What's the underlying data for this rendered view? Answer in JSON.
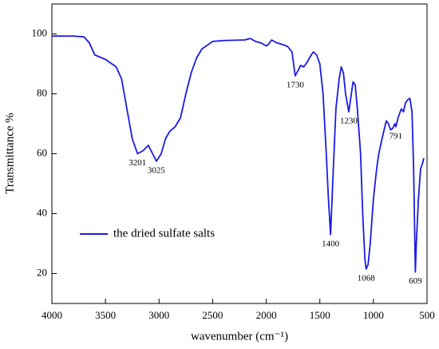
{
  "chart_data": {
    "type": "line",
    "x_label": "wavenumber (cm⁻¹)",
    "y_label": "Transmittance %",
    "xlim": [
      4000,
      500
    ],
    "ylim": [
      10,
      110
    ],
    "xticks": [
      4000,
      3500,
      3000,
      2500,
      2000,
      1500,
      1000,
      500
    ],
    "yticks": [
      20,
      40,
      60,
      80,
      100
    ],
    "legend": "center left",
    "series": [
      {
        "name": "the dried sulfate salts",
        "color": "#1a1ae6",
        "x": [
          4000,
          3800,
          3700,
          3650,
          3600,
          3500,
          3400,
          3350,
          3300,
          3250,
          3201,
          3150,
          3100,
          3060,
          3025,
          2980,
          2940,
          2900,
          2850,
          2800,
          2750,
          2700,
          2650,
          2600,
          2500,
          2400,
          2200,
          2150,
          2100,
          2050,
          2000,
          1980,
          1950,
          1900,
          1850,
          1800,
          1760,
          1730,
          1700,
          1680,
          1650,
          1620,
          1580,
          1560,
          1530,
          1500,
          1470,
          1440,
          1420,
          1400,
          1380,
          1350,
          1320,
          1300,
          1280,
          1260,
          1230,
          1210,
          1190,
          1170,
          1150,
          1120,
          1100,
          1080,
          1068,
          1050,
          1030,
          1000,
          970,
          950,
          920,
          900,
          880,
          860,
          840,
          820,
          800,
          791,
          770,
          740,
          720,
          700,
          680,
          660,
          640,
          625,
          609,
          600,
          580,
          560,
          540,
          530
        ],
        "values": [
          99.3,
          99.3,
          99,
          97,
          93,
          91.5,
          89,
          85,
          75,
          65,
          60,
          61,
          62.8,
          60,
          57.5,
          60,
          65,
          67.5,
          69,
          72,
          80,
          87,
          92,
          95,
          97.5,
          97.8,
          98,
          98.5,
          97.5,
          97,
          96,
          96.5,
          98,
          97,
          96.5,
          95.8,
          94,
          86,
          88,
          89.5,
          89,
          90.5,
          93,
          94,
          93,
          90,
          80,
          60,
          45,
          33,
          50,
          75,
          85,
          89,
          87,
          80,
          74,
          79,
          84,
          83,
          75,
          60,
          40,
          25,
          21.5,
          23,
          30,
          45,
          55,
          60,
          65,
          68,
          71,
          70,
          68,
          68.5,
          70,
          69,
          72,
          75,
          74,
          77,
          78,
          78.5,
          74,
          55,
          20.5,
          30,
          45,
          55,
          57,
          58.5
        ]
      }
    ],
    "annotations": [
      {
        "label": "3201",
        "x": 3201,
        "y": 60
      },
      {
        "label": "3025",
        "x": 3025,
        "y": 57.5
      },
      {
        "label": "1730",
        "x": 1730,
        "y": 86
      },
      {
        "label": "1400",
        "x": 1400,
        "y": 33
      },
      {
        "label": "1230",
        "x": 1230,
        "y": 74
      },
      {
        "label": "1068",
        "x": 1068,
        "y": 21.5
      },
      {
        "label": "791",
        "x": 791,
        "y": 69
      },
      {
        "label": "609",
        "x": 609,
        "y": 20.5
      }
    ]
  }
}
